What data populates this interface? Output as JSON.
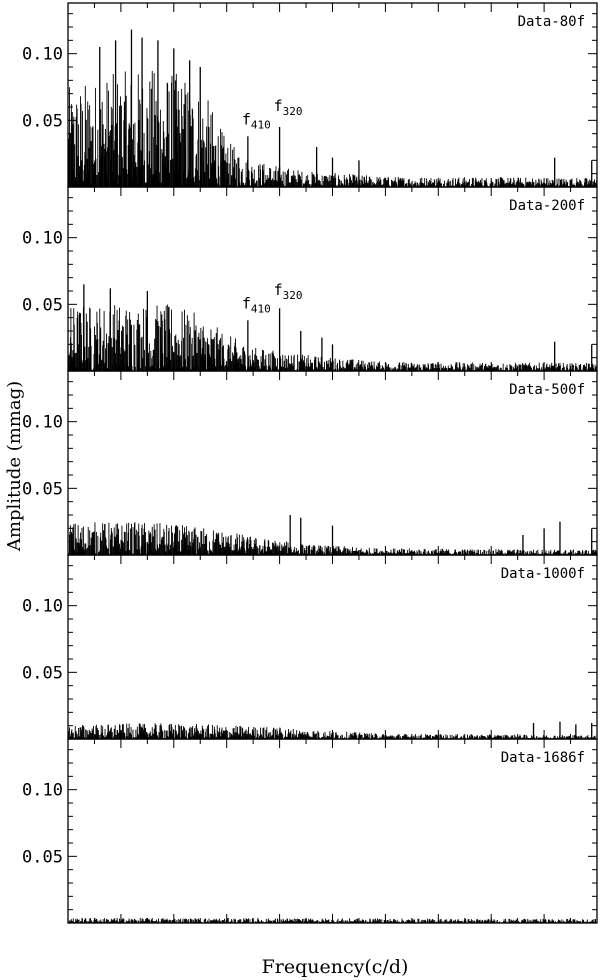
{
  "chart_data": {
    "type": "line",
    "xlabel": "Frequency(c/d)",
    "ylabel": "Amplitude (mmag)",
    "ylim": [
      0,
      0.138
    ],
    "xlim": [
      0,
      100
    ],
    "yticks": [
      0.05,
      0.1
    ],
    "ytick_labels": [
      "0.05",
      "0.10"
    ],
    "panels": [
      {
        "name": "Data-80f",
        "noise_profile": [
          [
            0,
            0.075
          ],
          [
            8,
            0.085
          ],
          [
            15,
            0.09
          ],
          [
            22,
            0.085
          ],
          [
            26,
            0.07
          ],
          [
            30,
            0.035
          ],
          [
            35,
            0.02
          ],
          [
            45,
            0.012
          ],
          [
            60,
            0.008
          ],
          [
            100,
            0.007
          ]
        ],
        "peaks": [
          [
            6,
            0.105
          ],
          [
            9,
            0.11
          ],
          [
            12,
            0.118
          ],
          [
            14,
            0.112
          ],
          [
            17,
            0.11
          ],
          [
            20,
            0.104
          ],
          [
            23,
            0.095
          ],
          [
            25,
            0.09
          ],
          [
            34,
            0.038
          ],
          [
            40,
            0.045
          ],
          [
            47,
            0.03
          ],
          [
            50,
            0.022
          ],
          [
            55,
            0.02
          ],
          [
            92,
            0.022
          ],
          [
            99,
            0.02
          ]
        ],
        "labels": [
          {
            "text": "f",
            "sub": "410",
            "x": 34,
            "y": 0.047
          },
          {
            "text": "f",
            "sub": "320",
            "x": 40,
            "y": 0.057
          }
        ]
      },
      {
        "name": "Data-200f",
        "noise_profile": [
          [
            0,
            0.05
          ],
          [
            10,
            0.052
          ],
          [
            20,
            0.05
          ],
          [
            25,
            0.042
          ],
          [
            30,
            0.028
          ],
          [
            35,
            0.018
          ],
          [
            45,
            0.012
          ],
          [
            60,
            0.007
          ],
          [
            100,
            0.006
          ]
        ],
        "peaks": [
          [
            3,
            0.065
          ],
          [
            8,
            0.062
          ],
          [
            15,
            0.06
          ],
          [
            34,
            0.038
          ],
          [
            40,
            0.047
          ],
          [
            44,
            0.03
          ],
          [
            48,
            0.025
          ],
          [
            50,
            0.02
          ],
          [
            92,
            0.022
          ],
          [
            99,
            0.02
          ]
        ],
        "labels": [
          {
            "text": "f",
            "sub": "410",
            "x": 34,
            "y": 0.047
          },
          {
            "text": "f",
            "sub": "320",
            "x": 40,
            "y": 0.057
          }
        ]
      },
      {
        "name": "Data-500f",
        "noise_profile": [
          [
            0,
            0.025
          ],
          [
            15,
            0.025
          ],
          [
            28,
            0.02
          ],
          [
            35,
            0.014
          ],
          [
            45,
            0.008
          ],
          [
            60,
            0.005
          ],
          [
            100,
            0.004
          ]
        ],
        "peaks": [
          [
            42,
            0.03
          ],
          [
            44,
            0.028
          ],
          [
            50,
            0.022
          ],
          [
            86,
            0.015
          ],
          [
            90,
            0.02
          ],
          [
            93,
            0.025
          ],
          [
            99,
            0.02
          ]
        ],
        "labels": []
      },
      {
        "name": "Data-1000f",
        "noise_profile": [
          [
            0,
            0.011
          ],
          [
            20,
            0.012
          ],
          [
            40,
            0.009
          ],
          [
            50,
            0.006
          ],
          [
            60,
            0.004
          ],
          [
            100,
            0.003
          ]
        ],
        "peaks": [
          [
            88,
            0.012
          ],
          [
            93,
            0.013
          ],
          [
            96,
            0.011
          ],
          [
            99,
            0.012
          ]
        ],
        "labels": []
      },
      {
        "name": "Data-1686f",
        "noise_profile": [
          [
            0,
            0.004
          ],
          [
            100,
            0.003
          ]
        ],
        "peaks": [],
        "labels": []
      }
    ]
  }
}
